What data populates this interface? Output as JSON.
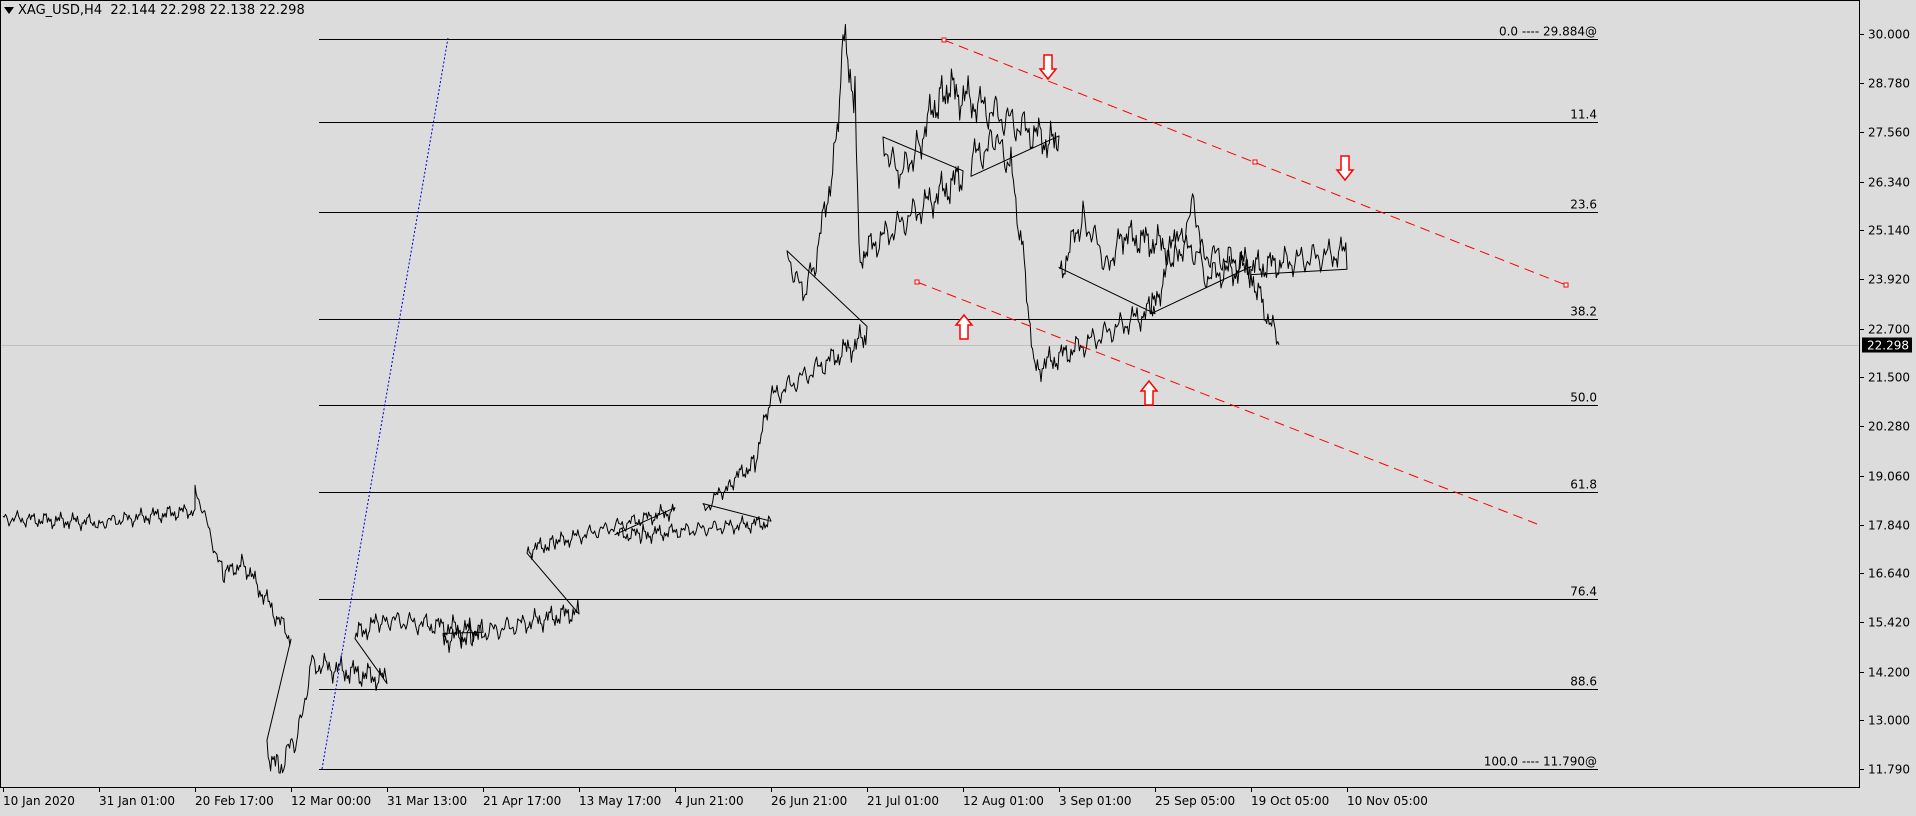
{
  "header": {
    "symbol": "XAG_USD,H4",
    "ohlc": "22.144 22.298 22.138 22.298"
  },
  "colors": {
    "background": "#dcdcdc",
    "price_line": "#000000",
    "fib_line": "#000000",
    "channel": "#ff0000",
    "arrow": "#ff0000",
    "trendline": "#0000cc",
    "price_badge_bg": "#000000",
    "price_badge_text": "#ffffff"
  },
  "chart_data": {
    "type": "line",
    "ylim": [
      11.79,
      30.0
    ],
    "y_ticks": [
      "30.000",
      "28.780",
      "27.560",
      "26.340",
      "25.140",
      "23.920",
      "22.700",
      "21.500",
      "20.280",
      "19.060",
      "17.840",
      "16.640",
      "15.420",
      "14.200",
      "13.000",
      "11.790"
    ],
    "x_tick_labels": [
      "10 Jan 2020",
      "31 Jan 01:00",
      "20 Feb 17:00",
      "12 Mar 00:00",
      "31 Mar 13:00",
      "21 Apr 17:00",
      "13 May 17:00",
      "4 Jun 21:00",
      "26 Jun 21:00",
      "21 Jul 01:00",
      "12 Aug 01:00",
      "3 Sep 01:00",
      "25 Sep 05:00",
      "19 Oct 05:00",
      "10 Nov 05:00"
    ],
    "current_price": "22.298",
    "fib_levels": [
      {
        "label": "0.0 ---- 29.884@",
        "value": 29.884
      },
      {
        "label": "11.4",
        "value": 27.81
      },
      {
        "label": "23.6",
        "value": 25.591
      },
      {
        "label": "38.2",
        "value": 22.93
      },
      {
        "label": "50.0",
        "value": 20.8
      },
      {
        "label": "61.8",
        "value": 18.65
      },
      {
        "label": "76.4",
        "value": 16.0
      },
      {
        "label": "88.6",
        "value": 13.77
      },
      {
        "label": "100.0 ---- 11.790@",
        "value": 11.79
      }
    ],
    "series": [
      {
        "points": [
          [
            "10 Jan 2020",
            18.0
          ],
          [
            "31 Jan 01:00",
            17.9
          ],
          [
            "20 Feb 17:00",
            18.2
          ],
          [
            "27 Feb",
            18.8
          ],
          [
            "5 Mar",
            16.6
          ],
          [
            "10 Mar",
            16.9
          ],
          [
            "12 Mar 00:00",
            15.0
          ],
          [
            "16 Mar",
            12.3
          ],
          [
            "19 Mar",
            11.8
          ],
          [
            "24 Mar",
            12.7
          ],
          [
            "27 Mar",
            14.4
          ],
          [
            "31 Mar 13:00",
            14.0
          ],
          [
            "7 Apr",
            15.1
          ],
          [
            "14 Apr",
            15.5
          ],
          [
            "21 Apr 17:00",
            15.2
          ],
          [
            "29 Apr",
            15.0
          ],
          [
            "6 May",
            15.1
          ],
          [
            "13 May 17:00",
            15.7
          ],
          [
            "20 May",
            17.2
          ],
          [
            "27 May",
            17.4
          ],
          [
            "4 Jun 21:00",
            18.2
          ],
          [
            "11 Jun",
            17.6
          ],
          [
            "18 Jun",
            17.6
          ],
          [
            "26 Jun 21:00",
            17.9
          ],
          [
            "3 Jul",
            18.2
          ],
          [
            "10 Jul",
            18.9
          ],
          [
            "16 Jul",
            19.4
          ],
          [
            "20 Jul",
            21.0
          ],
          [
            "21 Jul 01:00",
            22.5
          ],
          [
            "24 Jul",
            24.6
          ],
          [
            "28 Jul",
            23.5
          ],
          [
            "31 Jul",
            24.3
          ],
          [
            "5 Aug",
            27.0
          ],
          [
            "7 Aug",
            29.8
          ],
          [
            "10 Aug",
            28.5
          ],
          [
            "11 Aug",
            24.5
          ],
          [
            "12 Aug 01:00",
            26.5
          ],
          [
            "17 Aug",
            27.4
          ],
          [
            "21 Aug",
            26.4
          ],
          [
            "26 Aug",
            27.3
          ],
          [
            "1 Sep",
            28.7
          ],
          [
            "3 Sep 01:00",
            27.2
          ],
          [
            "8 Sep",
            26.9
          ],
          [
            "14 Sep",
            27.3
          ],
          [
            "18 Sep",
            26.8
          ],
          [
            "21 Sep",
            24.5
          ],
          [
            "24 Sep",
            21.7
          ],
          [
            "25 Sep 05:00",
            23.2
          ],
          [
            "30 Sep",
            24.0
          ],
          [
            "6 Oct",
            25.5
          ],
          [
            "12 Oct",
            24.3
          ],
          [
            "16 Oct",
            25.0
          ],
          [
            "19 Oct 05:00",
            24.3
          ],
          [
            "23 Oct",
            23.1
          ],
          [
            "28 Oct",
            24.4
          ],
          [
            "3 Nov",
            25.8
          ],
          [
            "5 Nov",
            24.0
          ],
          [
            "10 Nov 05:00",
            24.6
          ],
          [
            "17 Nov",
            24.1
          ],
          [
            "20 Nov",
            23.3
          ],
          [
            "24 Nov",
            22.3
          ]
        ]
      }
    ]
  }
}
